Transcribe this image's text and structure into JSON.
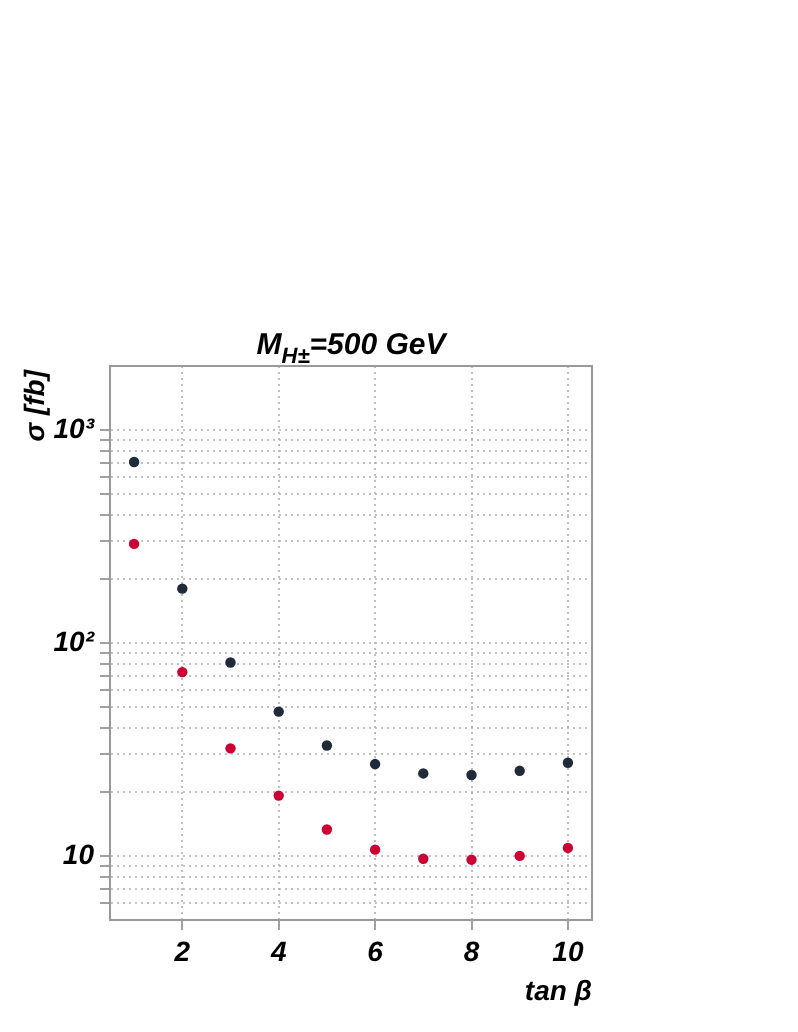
{
  "chart_data": {
    "type": "scatter",
    "title": "M$_{H±}$=500 GeV",
    "xlabel": "tan β",
    "ylabel": "σ [fb]",
    "x": [
      1,
      2,
      3,
      4,
      5,
      6,
      7,
      8,
      9,
      10
    ],
    "series": [
      {
        "color": "#1f2a3a",
        "values": [
          708,
          180,
          81,
          47.6,
          33,
          27,
          24.4,
          24,
          25.1,
          27.4
        ]
      },
      {
        "color": "#cc0033",
        "values": [
          292,
          73,
          32,
          19.2,
          13.3,
          10.7,
          9.7,
          9.6,
          10,
          10.9
        ]
      },
      {
        "color": "#cc0033",
        "values": [
          null,
          null,
          null,
          null,
          null,
          null,
          null,
          null,
          null,
          null
        ]
      }
    ],
    "xlim": [
      0.5,
      10.5
    ],
    "xticks": [
      2,
      4,
      6,
      8,
      10
    ],
    "ylim": [
      5,
      2000
    ],
    "log": "y",
    "yticks": [
      {
        "value": 6,
        "label": null
      },
      {
        "value": 7,
        "label": null
      },
      {
        "value": 8,
        "label": null
      },
      {
        "value": 9,
        "label": null
      },
      10,
      {
        "value": 20,
        "label": null
      },
      {
        "value": 30,
        "label": null
      },
      {
        "value": 40,
        "label": null
      },
      {
        "value": 50,
        "label": null
      },
      {
        "value": 60,
        "label": null
      },
      {
        "value": 70,
        "label": null
      },
      {
        "value": 80,
        "label": null
      },
      {
        "value": 90,
        "label": null
      },
      {
        "value": 100,
        "label": "10²"
      },
      {
        "value": 200,
        "label": null
      },
      {
        "value": 300,
        "label": null
      },
      {
        "value": 400,
        "label": null
      },
      {
        "value": 500,
        "label": null
      },
      {
        "value": 600,
        "label": null
      },
      {
        "value": 700,
        "label": null
      },
      {
        "value": 800,
        "label": null
      },
      {
        "value": 900,
        "label": null
      },
      {
        "value": 1000,
        "label": "10³"
      }
    ],
    "grid": true,
    "marker": "circle",
    "legend": false
  }
}
